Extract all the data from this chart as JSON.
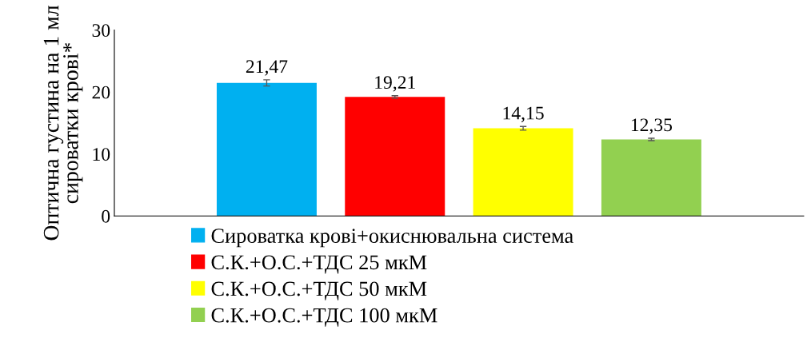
{
  "chart_data": {
    "type": "bar",
    "ylabel": "Оптична густина на 1 мл\nсироватки крові*",
    "categories": [
      null
    ],
    "series": [
      {
        "name": "Сироватка крові+окиснювальна система",
        "color": "#00b0f0",
        "values": [
          21.47
        ],
        "errors": [
          0.5
        ],
        "value_labels": [
          "21,47"
        ]
      },
      {
        "name": "С.К.+О.С.+ТДС 25 мкМ",
        "color": "#ff0000",
        "values": [
          19.21
        ],
        "errors": [
          0.2
        ],
        "value_labels": [
          "19,21"
        ]
      },
      {
        "name": "С.К.+О.С.+ТДС 50 мкМ",
        "color": "#ffff00",
        "values": [
          14.15
        ],
        "errors": [
          0.3
        ],
        "value_labels": [
          "14,15"
        ]
      },
      {
        "name": "С.К.+О.С.+ТДС 100 мкМ",
        "color": "#92d050",
        "values": [
          12.35
        ],
        "errors": [
          0.2
        ],
        "value_labels": [
          "12,35"
        ]
      }
    ],
    "ylim": [
      0,
      30
    ],
    "yticks": [
      0,
      10,
      20,
      30
    ],
    "grid": false,
    "legend": "bottom"
  }
}
